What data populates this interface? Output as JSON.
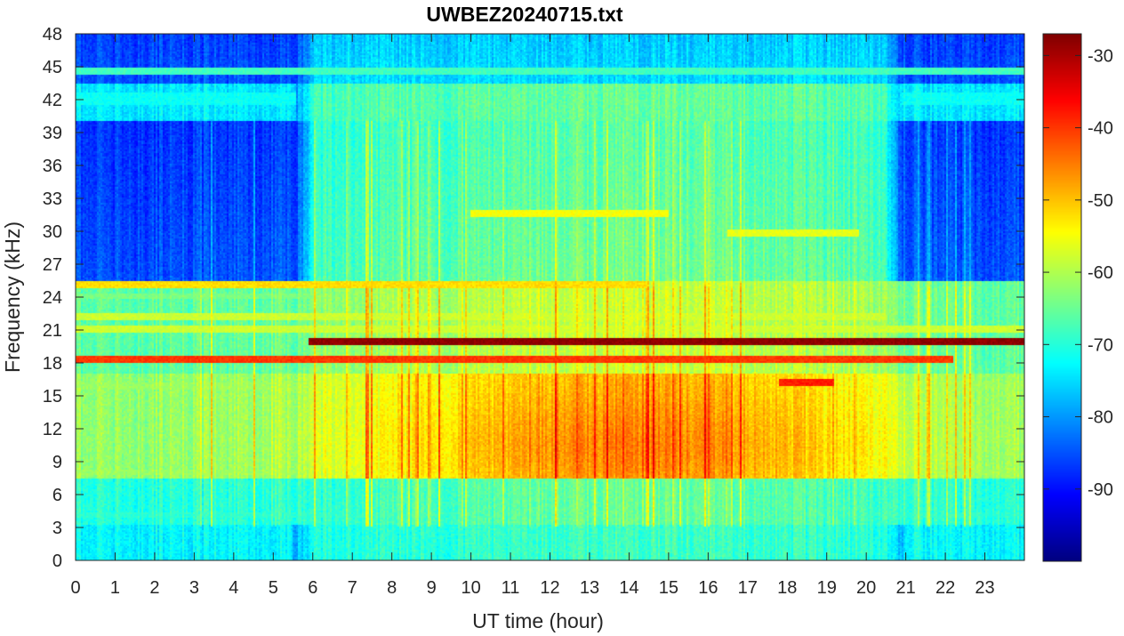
{
  "chart_data": {
    "type": "heatmap",
    "title": "UWBEZ20240715.txt",
    "xlabel": "UT time (hour)",
    "ylabel": "Frequency (kHz)",
    "xlim": [
      0,
      24
    ],
    "ylim": [
      0,
      48
    ],
    "x_ticks": [
      "0",
      "1",
      "2",
      "3",
      "4",
      "5",
      "6",
      "7",
      "8",
      "9",
      "10",
      "11",
      "12",
      "13",
      "14",
      "15",
      "16",
      "17",
      "18",
      "19",
      "20",
      "21",
      "22",
      "23"
    ],
    "y_ticks": [
      "0",
      "3",
      "6",
      "9",
      "12",
      "15",
      "18",
      "21",
      "24",
      "27",
      "30",
      "33",
      "36",
      "39",
      "42",
      "45",
      "48"
    ],
    "colorbar": {
      "range": [
        -100,
        -27
      ],
      "ticks": [
        "-30",
        "-40",
        "-50",
        "-60",
        "-70",
        "-80",
        "-90"
      ],
      "colormap": "jet"
    },
    "features": [
      {
        "type": "line",
        "freq_khz": 19.8,
        "t_start": 5.9,
        "t_end": 24,
        "level_db": -28
      },
      {
        "type": "line",
        "freq_khz": 18.2,
        "t_start": 0,
        "t_end": 22.2,
        "level_db": -40
      },
      {
        "type": "line",
        "freq_khz": 22.2,
        "t_start": 0,
        "t_end": 20.5,
        "level_db": -58
      },
      {
        "type": "line",
        "freq_khz": 25.0,
        "t_start": 0,
        "t_end": 14.4,
        "level_db": -52
      },
      {
        "type": "line",
        "freq_khz": 44.5,
        "t_start": 0,
        "t_end": 24,
        "level_db": -68
      },
      {
        "type": "line",
        "freq_khz": 31.5,
        "t_start": 10,
        "t_end": 15,
        "level_db": -55
      },
      {
        "type": "line",
        "freq_khz": 16.2,
        "t_start": 17.8,
        "t_end": 19.2,
        "level_db": -38
      },
      {
        "type": "blob",
        "freq_khz": 10.5,
        "t_center": 14.5,
        "level_db": -46
      }
    ]
  }
}
